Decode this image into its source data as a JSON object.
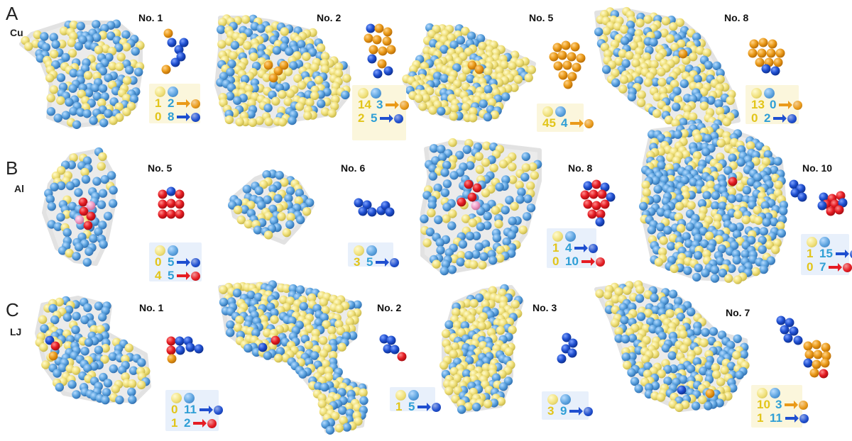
{
  "rows": [
    {
      "letter": "A",
      "element": "Cu"
    },
    {
      "letter": "B",
      "element": "Al"
    },
    {
      "letter": "C",
      "element": "LJ"
    }
  ],
  "panels": [
    {
      "label": "No. 1",
      "legend": {
        "type": "double",
        "rows": [
          {
            "y": "1",
            "b": "2",
            "target": "orange"
          },
          {
            "y": "0",
            "b": "8",
            "target": "blue"
          }
        ]
      }
    },
    {
      "label": "No. 2",
      "legend": {
        "type": "double",
        "rows": [
          {
            "y": "14",
            "b": "3",
            "target": "orange"
          },
          {
            "y": "2",
            "b": "5",
            "target": "blue"
          }
        ]
      }
    },
    {
      "label": "No. 5",
      "legend": {
        "type": "single",
        "rows": [
          {
            "y": "45",
            "b": "4",
            "target": "orange"
          }
        ]
      }
    },
    {
      "label": "No. 8",
      "legend": {
        "type": "double",
        "rows": [
          {
            "y": "13",
            "b": "0",
            "target": "orange"
          },
          {
            "y": "0",
            "b": "2",
            "target": "blue"
          }
        ]
      }
    },
    {
      "label": "No. 5",
      "legend": {
        "type": "double",
        "rows": [
          {
            "y": "0",
            "b": "5",
            "target": "blue"
          },
          {
            "y": "4",
            "b": "5",
            "target": "red"
          }
        ]
      }
    },
    {
      "label": "No. 6",
      "legend": {
        "type": "single",
        "rows": [
          {
            "y": "3",
            "b": "5",
            "target": "blue"
          }
        ]
      }
    },
    {
      "label": "No. 8",
      "legend": {
        "type": "double",
        "rows": [
          {
            "y": "1",
            "b": "4",
            "target": "blue"
          },
          {
            "y": "0",
            "b": "10",
            "target": "red"
          }
        ]
      }
    },
    {
      "label": "No. 10",
      "legend": {
        "type": "double",
        "rows": [
          {
            "y": "1",
            "b": "15",
            "target": "blue"
          },
          {
            "y": "0",
            "b": "7",
            "target": "red"
          }
        ]
      }
    },
    {
      "label": "No. 1",
      "legend": {
        "type": "double",
        "rows": [
          {
            "y": "0",
            "b": "11",
            "target": "blue"
          },
          {
            "y": "1",
            "b": "2",
            "target": "red"
          }
        ]
      }
    },
    {
      "label": "No. 2",
      "legend": {
        "type": "single",
        "rows": [
          {
            "y": "1",
            "b": "5",
            "target": "blue"
          }
        ]
      }
    },
    {
      "label": "No. 3",
      "legend": {
        "type": "single",
        "rows": [
          {
            "y": "3",
            "b": "9",
            "target": "blue"
          }
        ]
      }
    },
    {
      "label": "No. 7",
      "legend": {
        "type": "double",
        "rows": [
          {
            "y": "10",
            "b": "3",
            "target": "orange"
          },
          {
            "y": "1",
            "b": "11",
            "target": "blue"
          }
        ]
      }
    }
  ],
  "colors": {
    "yellow": "#f3e88a",
    "lightblue": "#5ba2de",
    "orange": "#ea9a19",
    "blue": "#1f4fd0",
    "red": "#e51c23",
    "pink": "#f0a0c8",
    "hull": "#ebebeb"
  }
}
